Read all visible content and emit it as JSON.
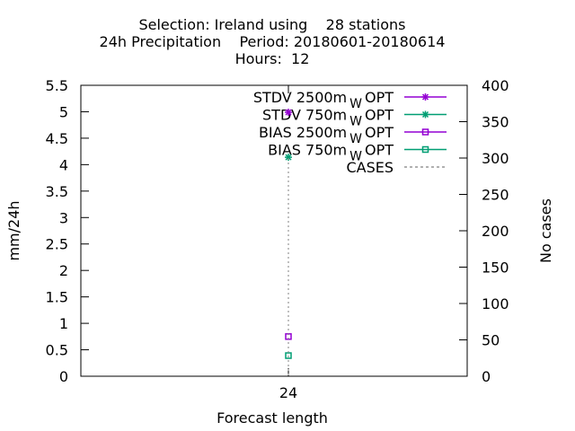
{
  "header": {
    "line1": "Selection: Ireland using    28 stations",
    "line2": "24h Precipitation    Period: 20180601-20180614",
    "line3": "Hours:  12"
  },
  "chart_data": {
    "type": "scatter",
    "title": "Selection: Ireland using    28 stations / 24h Precipitation    Period: 20180601-20180614 / Hours:  12",
    "xlabel": "Forecast length",
    "ylabel": "mm/24h",
    "y2label": "No cases",
    "x": [
      24
    ],
    "x_ticks": [
      "24"
    ],
    "ylim": [
      0,
      5.5
    ],
    "y_ticks": [
      "0",
      "0.5",
      "1",
      "1.5",
      "2",
      "2.5",
      "3",
      "3.5",
      "4",
      "4.5",
      "5",
      "5.5"
    ],
    "y2lim": [
      0,
      400
    ],
    "y2_ticks": [
      "0",
      "50",
      "100",
      "150",
      "200",
      "250",
      "300",
      "350",
      "400"
    ],
    "legend_position": "top-right",
    "series": [
      {
        "name": "STDV 2500m",
        "suffix": "OPT",
        "sub": "W",
        "axis": "y",
        "marker": "star",
        "color": "#9400d3",
        "values": [
          4.99
        ]
      },
      {
        "name": "STDV 750m",
        "suffix": "OPT",
        "sub": "W",
        "axis": "y",
        "marker": "star",
        "color": "#009e73",
        "values": [
          4.14
        ]
      },
      {
        "name": "BIAS 2500m",
        "suffix": "OPT",
        "sub": "W",
        "axis": "y",
        "marker": "square",
        "color": "#9400d3",
        "values": [
          0.75
        ]
      },
      {
        "name": "BIAS 750m",
        "suffix": "OPT",
        "sub": "W",
        "axis": "y",
        "marker": "square",
        "color": "#009e73",
        "values": [
          0.39
        ]
      },
      {
        "name": "CASES",
        "suffix": "",
        "sub": "",
        "axis": "y2",
        "marker": "none",
        "color": "#808080",
        "values": [
          300
        ]
      }
    ]
  }
}
